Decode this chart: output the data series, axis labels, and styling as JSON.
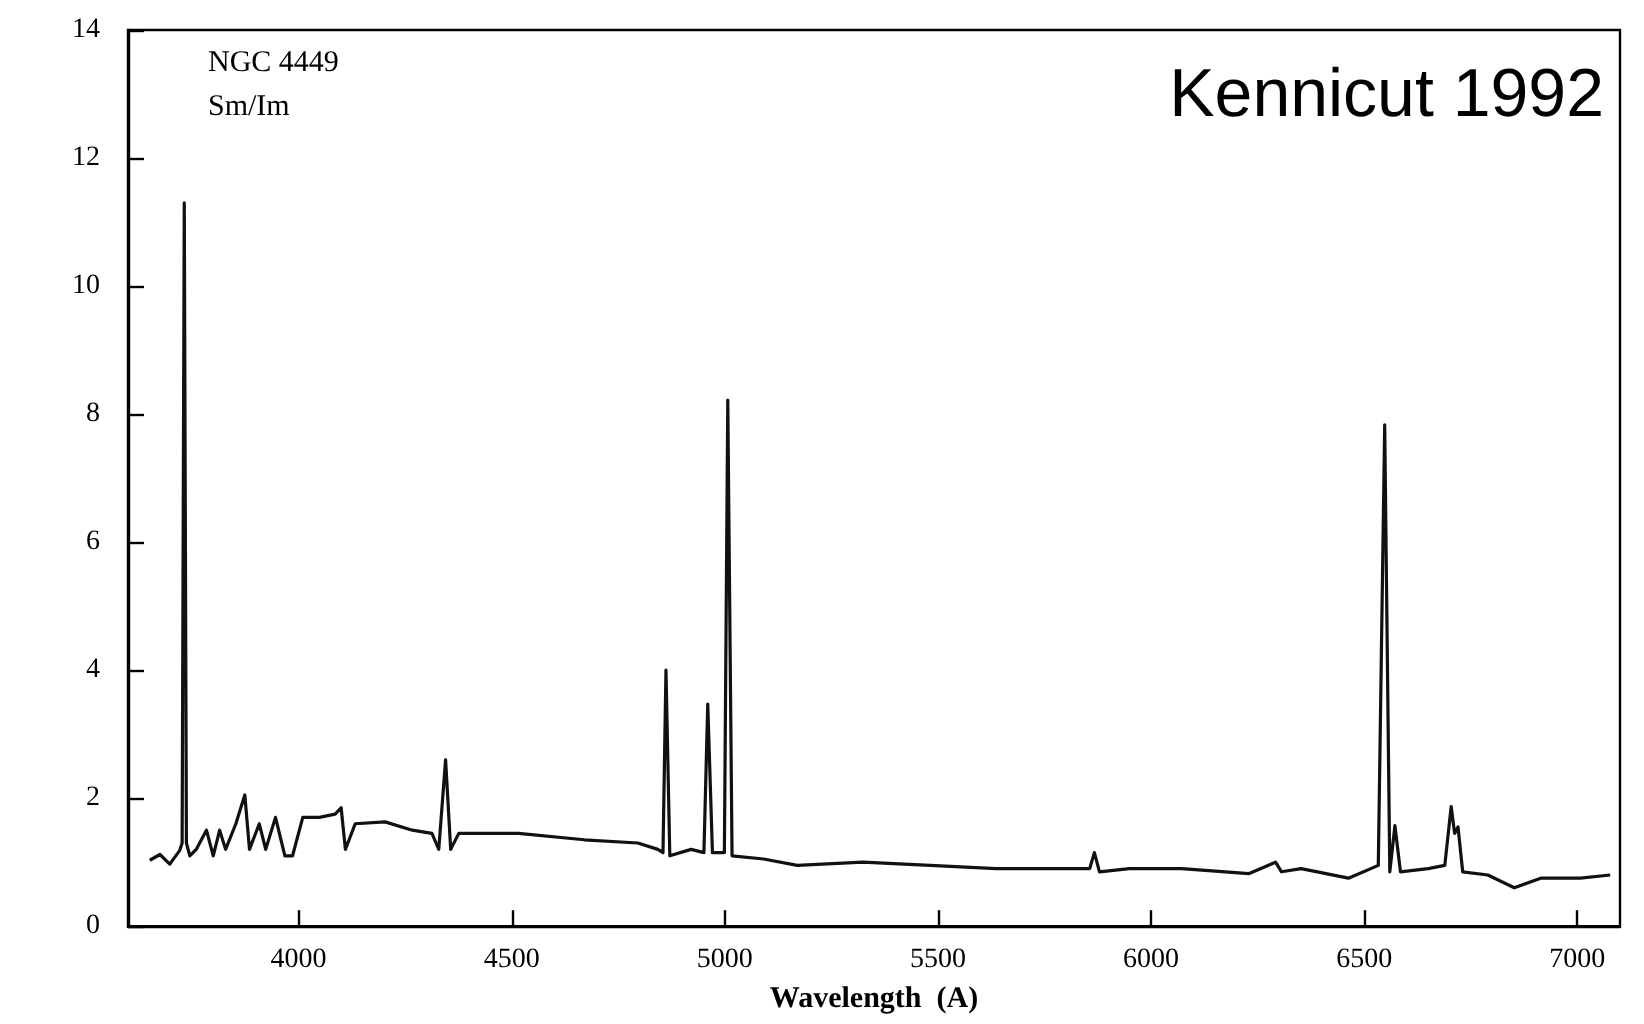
{
  "chart_data": {
    "type": "line",
    "xlabel": "Wavelength  (A)",
    "annotations": [
      "NGC 4449",
      "Sm/Im",
      "Kennicut 1992"
    ],
    "xlim": [
      3600,
      7100
    ],
    "xticks": [
      4000,
      4500,
      5000,
      5500,
      6000,
      6500,
      7000
    ],
    "ylim": [
      0,
      14
    ],
    "yticks": [
      0,
      2,
      4,
      6,
      8,
      10,
      12,
      14
    ],
    "marker": "none",
    "line_style": "solid",
    "series": [
      {
        "color": "#111111",
        "x": [
          3651,
          3675,
          3698,
          3721,
          3727,
          3732,
          3737,
          3745,
          3760,
          3784,
          3800,
          3815,
          3829,
          3853,
          3874,
          3885,
          3908,
          3923,
          3946,
          3968,
          3986,
          4010,
          4049,
          4086,
          4100,
          4110,
          4133,
          4203,
          4267,
          4313,
          4329,
          4345,
          4357,
          4376,
          4516,
          4670,
          4796,
          4843,
          4855,
          4862,
          4871,
          4921,
          4951,
          4960,
          4971,
          4999,
          5007,
          5017,
          5091,
          5170,
          5324,
          5482,
          5637,
          5856,
          5867,
          5879,
          5949,
          6072,
          6229,
          6292,
          6306,
          6352,
          6463,
          6533,
          6548,
          6560,
          6572,
          6585,
          6650,
          6689,
          6704,
          6712,
          6720,
          6731,
          6790,
          6852,
          6914,
          7007,
          7077
        ],
        "values": [
          1.03,
          1.12,
          0.97,
          1.18,
          1.3,
          11.3,
          1.3,
          1.1,
          1.2,
          1.5,
          1.1,
          1.5,
          1.2,
          1.6,
          2.05,
          1.2,
          1.6,
          1.2,
          1.7,
          1.1,
          1.1,
          1.7,
          1.7,
          1.75,
          1.85,
          1.2,
          1.6,
          1.63,
          1.5,
          1.45,
          1.2,
          2.6,
          1.2,
          1.45,
          1.45,
          1.35,
          1.3,
          1.2,
          1.15,
          4.0,
          1.1,
          1.2,
          1.15,
          3.47,
          1.15,
          1.15,
          8.22,
          1.1,
          1.05,
          0.95,
          1.0,
          0.95,
          0.9,
          0.9,
          1.15,
          0.85,
          0.9,
          0.9,
          0.82,
          1.0,
          0.85,
          0.9,
          0.75,
          0.95,
          7.83,
          0.85,
          1.57,
          0.85,
          0.9,
          0.95,
          1.87,
          1.45,
          1.55,
          0.85,
          0.8,
          0.6,
          0.75,
          0.75,
          0.8
        ]
      }
    ]
  }
}
